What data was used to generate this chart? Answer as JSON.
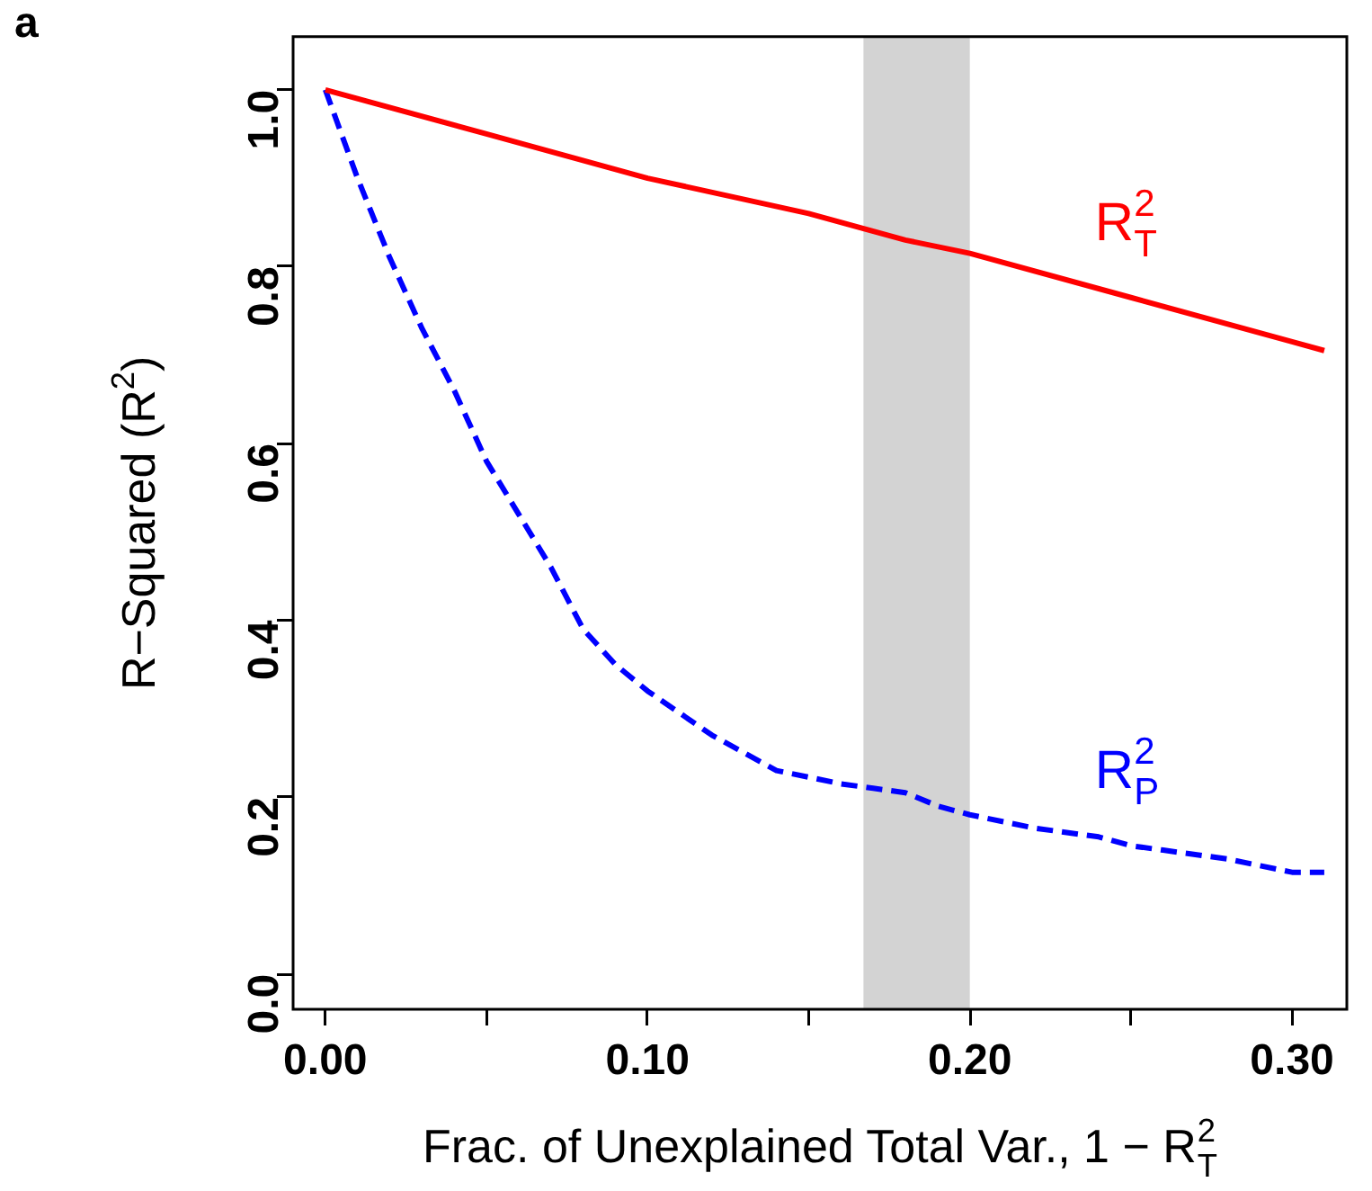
{
  "chart_data": {
    "type": "line",
    "title": "a",
    "xlabel": "Frac. of Unexplained Total Var., 1 − R$^{2}$$_{T}$",
    "ylabel": "R−Squared (R$^{2}$)",
    "xlim": [
      -0.01,
      0.317
    ],
    "ylim": [
      -0.04,
      1.06
    ],
    "xticks": [
      {
        "value": 0,
        "label": "0.00"
      },
      {
        "value": 0.05,
        "label": null
      },
      {
        "value": 0.1,
        "label": "0.10"
      },
      {
        "value": 0.15,
        "label": null
      },
      {
        "value": 0.2,
        "label": "0.20"
      },
      {
        "value": 0.25,
        "label": null
      },
      {
        "value": 0.3,
        "label": "0.30"
      }
    ],
    "yticks": [
      {
        "value": 0,
        "label": "0.0"
      },
      0.2,
      0.4,
      0.6,
      0.8,
      {
        "value": 1,
        "label": "1.0"
      }
    ],
    "grid": false,
    "legend": false,
    "marker": "none",
    "bands": [
      {
        "axis": "x",
        "from": 0.167,
        "to": 0.2,
        "color": "#d3d3d3"
      }
    ],
    "series": [
      {
        "name": "R$^{2}$$_{T}$",
        "color": "#ff0000",
        "line_style": "solid",
        "x": [
          0,
          0.05,
          0.1,
          0.15,
          0.18,
          0.2,
          0.25,
          0.3,
          0.31
        ],
        "values": [
          1,
          0.95,
          0.9,
          0.86,
          0.83,
          0.815,
          0.765,
          0.715,
          0.705
        ]
      },
      {
        "name": "R$^{2}$$_{P}$",
        "color": "#0000ff",
        "line_style": "dashed",
        "x": [
          0,
          0.01,
          0.02,
          0.03,
          0.04,
          0.05,
          0.06,
          0.07,
          0.08,
          0.09,
          0.1,
          0.12,
          0.14,
          0.16,
          0.17,
          0.18,
          0.19,
          0.2,
          0.22,
          0.24,
          0.25,
          0.26,
          0.28,
          0.3,
          0.31
        ],
        "values": [
          1,
          0.9,
          0.81,
          0.73,
          0.66,
          0.58,
          0.52,
          0.46,
          0.39,
          0.35,
          0.32,
          0.27,
          0.23,
          0.215,
          0.21,
          0.205,
          0.19,
          0.18,
          0.165,
          0.155,
          0.145,
          0.14,
          0.13,
          0.115,
          0.115
        ]
      }
    ]
  }
}
